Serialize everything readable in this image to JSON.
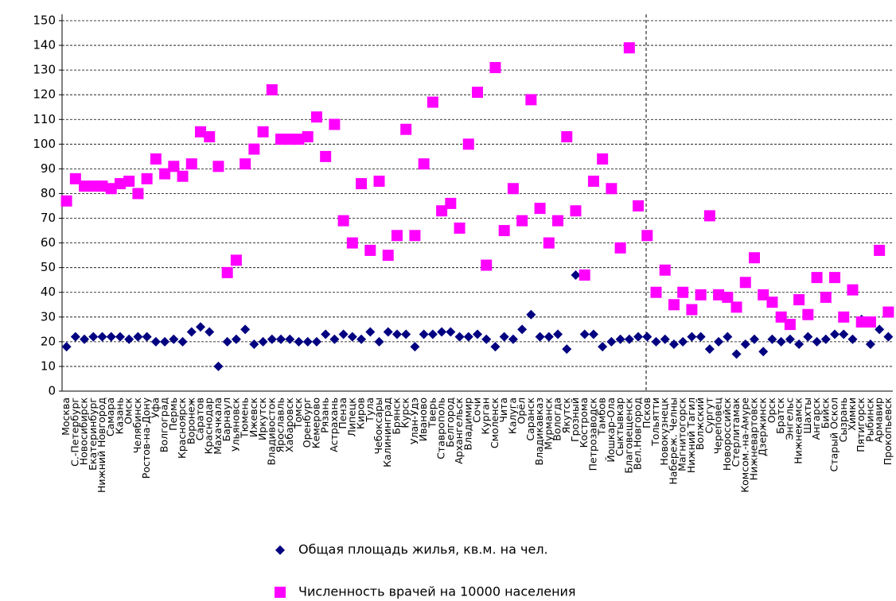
{
  "chart_data": {
    "type": "scatter",
    "categories": [
      "Москва",
      "С.-Петербург",
      "Новосибирск",
      "Екатеринбург",
      "Нижний Новгород",
      "Самара",
      "Казань",
      "Омск",
      "Челябинск",
      "Ростов-на-Дону",
      "Уфа",
      "Волгоград",
      "Пермь",
      "Красноярск",
      "Воронеж",
      "Саратов",
      "Краснодар",
      "Махачкала",
      "Барнаул",
      "Ульяновск",
      "Тюмень",
      "Ижевск",
      "Иркутск",
      "Владивосток",
      "Ярославль",
      "Хабаровск",
      "Томск",
      "Оренбург",
      "Кемерово",
      "Рязань",
      "Астрахань",
      "Пенза",
      "Липецк",
      "Киров",
      "Тула",
      "Чебоксары",
      "Калининград",
      "Брянск",
      "Курск",
      "Улан-Удэ",
      "Иваново",
      "Тверь",
      "Ставрополь",
      "Белгород",
      "Архангельск",
      "Владимир",
      "Сочи",
      "Курган",
      "Смоленск",
      "Чита",
      "Калуга",
      "Орёл",
      "Саранск",
      "Владикавказ",
      "Мурманск",
      "Вологда",
      "Якутск",
      "Грозный",
      "Кострома",
      "Петрозаводск",
      "Тамбов",
      "Йошкар-Ола",
      "Сыктывкар",
      "Благовещенск",
      "Вел.Новгород",
      "Псков",
      "Тольятти",
      "Новокузнецк",
      "Набереж. Челны",
      "Магнитогорск",
      "Нижний Тагил",
      "Волжский",
      "Сургут",
      "Череповец",
      "Новороссийск",
      "Стерлитамак",
      "Комсом.-на-Амуре",
      "Нижневартовск",
      "Дзержинск",
      "Орск",
      "Братск",
      "Энгельс",
      "Нижнекамск",
      "Шахты",
      "Ангарск",
      "Бийск",
      "Старый Оскол",
      "Сызрань",
      "Химки",
      "Пятигорск",
      "Рыбинск",
      "Армавир",
      "Прокопьевск"
    ],
    "series": [
      {
        "name": "Общая площадь жилья, кв.м. на чел.",
        "color": "#000080",
        "marker": "diamond",
        "values": [
          18,
          22,
          21,
          22,
          22,
          22,
          22,
          21,
          22,
          22,
          20,
          20,
          21,
          20,
          24,
          26,
          24,
          10,
          20,
          21,
          25,
          19,
          20,
          21,
          21,
          21,
          20,
          20,
          20,
          23,
          21,
          23,
          22,
          21,
          24,
          20,
          24,
          23,
          23,
          18,
          23,
          23,
          24,
          24,
          22,
          22,
          23,
          21,
          18,
          22,
          21,
          25,
          31,
          22,
          22,
          23,
          17,
          47,
          23,
          23,
          18,
          20,
          21,
          21,
          22,
          22,
          20,
          21,
          19,
          20,
          22,
          22,
          17,
          20,
          22,
          15,
          19,
          21,
          16,
          21,
          20,
          21,
          19,
          22,
          20,
          21,
          23,
          23,
          21,
          29,
          19,
          25,
          22
        ]
      },
      {
        "name": "Численность врачей на 10000 населения",
        "color": "#ff00ff",
        "marker": "square",
        "values": [
          77,
          86,
          83,
          83,
          83,
          82,
          84,
          85,
          80,
          86,
          94,
          88,
          91,
          87,
          92,
          105,
          103,
          91,
          48,
          53,
          92,
          98,
          105,
          122,
          102,
          102,
          102,
          103,
          111,
          95,
          108,
          69,
          60,
          84,
          57,
          85,
          55,
          63,
          106,
          63,
          92,
          117,
          73,
          76,
          66,
          100,
          121,
          51,
          131,
          65,
          82,
          69,
          118,
          74,
          60,
          69,
          103,
          73,
          47,
          85,
          94,
          82,
          58,
          139,
          75,
          63,
          40,
          49,
          35,
          40,
          33,
          39,
          71,
          39,
          38,
          34,
          44,
          54,
          39,
          36,
          30,
          27,
          37,
          31,
          46,
          38,
          46,
          30,
          41,
          28,
          28,
          57,
          32
        ]
      }
    ],
    "ylim": [
      0,
      150
    ],
    "yticks": [
      0,
      10,
      20,
      30,
      40,
      50,
      60,
      70,
      80,
      90,
      100,
      110,
      120,
      130,
      140,
      150
    ],
    "grid": true
  }
}
